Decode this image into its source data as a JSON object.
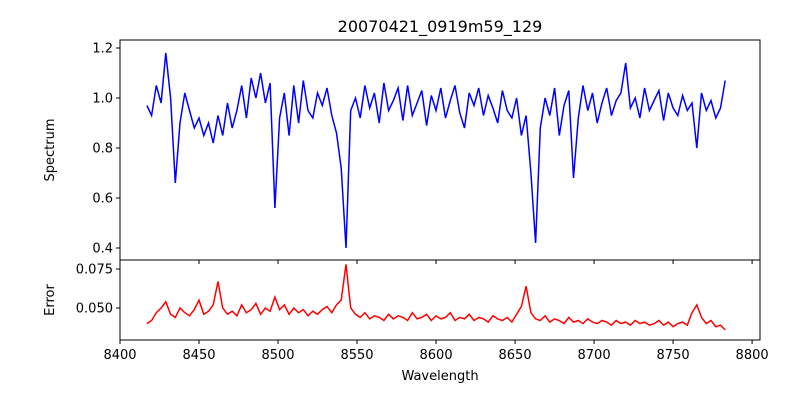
{
  "chart_data": [
    {
      "type": "line",
      "title": "20070421_0919m59_129",
      "xlabel": "",
      "ylabel": "Spectrum",
      "xlim": [
        8400,
        8805
      ],
      "ylim": [
        0.352,
        1.232
      ],
      "xticks": [
        8400,
        8450,
        8500,
        8550,
        8600,
        8650,
        8700,
        8750,
        8800
      ],
      "yticks": [
        "0.4",
        "0.6",
        "0.8",
        "1.0",
        "1.2"
      ],
      "color": "#0000ff",
      "x_start": 8417,
      "x_step": 3,
      "values": [
        0.97,
        0.93,
        1.05,
        0.98,
        1.18,
        1.0,
        0.66,
        0.9,
        1.02,
        0.95,
        0.88,
        0.92,
        0.85,
        0.9,
        0.82,
        0.93,
        0.85,
        0.98,
        0.88,
        0.95,
        1.05,
        0.92,
        1.08,
        1.0,
        1.1,
        0.98,
        1.06,
        0.56,
        0.92,
        1.02,
        0.85,
        1.05,
        0.9,
        1.07,
        0.95,
        0.92,
        1.02,
        0.97,
        1.04,
        0.93,
        0.86,
        0.72,
        0.4,
        0.95,
        1.0,
        0.92,
        1.05,
        0.96,
        1.02,
        0.9,
        1.06,
        0.95,
        0.99,
        1.04,
        0.91,
        1.05,
        0.93,
        0.98,
        1.03,
        0.89,
        1.01,
        0.95,
        1.04,
        0.92,
        0.99,
        1.05,
        0.94,
        0.88,
        1.02,
        0.97,
        1.04,
        0.93,
        1.01,
        0.96,
        0.9,
        1.03,
        0.95,
        0.92,
        1.0,
        0.85,
        0.93,
        0.7,
        0.42,
        0.88,
        1.0,
        0.93,
        1.04,
        0.85,
        0.97,
        1.03,
        0.68,
        0.92,
        1.05,
        0.95,
        1.02,
        0.9,
        0.98,
        1.04,
        0.93,
        0.99,
        1.02,
        1.14,
        0.96,
        1.0,
        0.92,
        1.04,
        0.95,
        0.99,
        1.03,
        0.91,
        1.02,
        0.96,
        0.93,
        1.01,
        0.95,
        0.98,
        0.8,
        1.02,
        0.95,
        0.99,
        0.92,
        0.96,
        1.07
      ]
    },
    {
      "type": "line",
      "title": "",
      "xlabel": "Wavelength",
      "ylabel": "Error",
      "xlim": [
        8400,
        8805
      ],
      "ylim": [
        0.0295,
        0.0808
      ],
      "xticks": [
        "8400",
        "8450",
        "8500",
        "8550",
        "8600",
        "8650",
        "8700",
        "8750",
        "8800"
      ],
      "yticks": [
        "0.050",
        "0.075"
      ],
      "color": "#ff0000",
      "x_start": 8417,
      "x_step": 3,
      "values": [
        0.04,
        0.042,
        0.047,
        0.05,
        0.054,
        0.046,
        0.044,
        0.05,
        0.047,
        0.045,
        0.049,
        0.055,
        0.046,
        0.048,
        0.052,
        0.067,
        0.05,
        0.046,
        0.048,
        0.045,
        0.052,
        0.047,
        0.049,
        0.053,
        0.046,
        0.05,
        0.048,
        0.057,
        0.049,
        0.052,
        0.046,
        0.05,
        0.047,
        0.049,
        0.045,
        0.048,
        0.046,
        0.049,
        0.051,
        0.047,
        0.052,
        0.055,
        0.078,
        0.05,
        0.046,
        0.044,
        0.047,
        0.043,
        0.045,
        0.044,
        0.042,
        0.046,
        0.043,
        0.045,
        0.044,
        0.042,
        0.047,
        0.043,
        0.044,
        0.046,
        0.042,
        0.045,
        0.043,
        0.044,
        0.047,
        0.042,
        0.044,
        0.043,
        0.046,
        0.042,
        0.044,
        0.043,
        0.041,
        0.045,
        0.043,
        0.042,
        0.044,
        0.041,
        0.046,
        0.051,
        0.064,
        0.047,
        0.043,
        0.042,
        0.045,
        0.041,
        0.043,
        0.042,
        0.04,
        0.044,
        0.041,
        0.042,
        0.04,
        0.043,
        0.041,
        0.04,
        0.042,
        0.041,
        0.039,
        0.042,
        0.04,
        0.041,
        0.039,
        0.042,
        0.04,
        0.041,
        0.039,
        0.04,
        0.042,
        0.039,
        0.041,
        0.038,
        0.04,
        0.041,
        0.039,
        0.047,
        0.052,
        0.044,
        0.04,
        0.042,
        0.038,
        0.039,
        0.036
      ]
    }
  ]
}
